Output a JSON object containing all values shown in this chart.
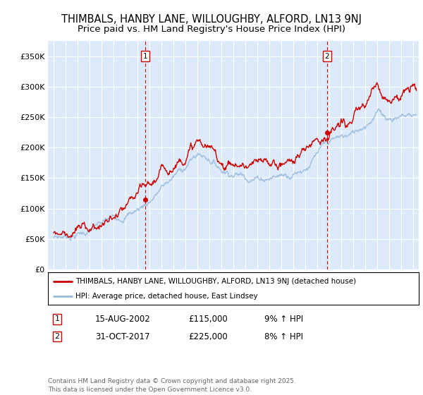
{
  "title": "THIMBALS, HANBY LANE, WILLOUGHBY, ALFORD, LN13 9NJ",
  "subtitle": "Price paid vs. HM Land Registry's House Price Index (HPI)",
  "ylim": [
    0,
    375000
  ],
  "yticks": [
    0,
    50000,
    100000,
    150000,
    200000,
    250000,
    300000,
    350000
  ],
  "ytick_labels": [
    "£0",
    "£50K",
    "£100K",
    "£150K",
    "£200K",
    "£250K",
    "£300K",
    "£350K"
  ],
  "plot_bg": "#dce9f8",
  "grid_color": "#ffffff",
  "red_line_color": "#cc0000",
  "blue_line_color": "#99bbdd",
  "marker_vline_color": "#cc0000",
  "marker1_x": 2002.62,
  "marker2_x": 2017.83,
  "legend_label_red": "THIMBALS, HANBY LANE, WILLOUGHBY, ALFORD, LN13 9NJ (detached house)",
  "legend_label_blue": "HPI: Average price, detached house, East Lindsey",
  "annotation1": [
    "1",
    "15-AUG-2002",
    "£115,000",
    "9% ↑ HPI"
  ],
  "annotation2": [
    "2",
    "31-OCT-2017",
    "£225,000",
    "8% ↑ HPI"
  ],
  "footer": "Contains HM Land Registry data © Crown copyright and database right 2025.\nThis data is licensed under the Open Government Licence v3.0.",
  "title_fontsize": 10.5,
  "subtitle_fontsize": 9.5
}
